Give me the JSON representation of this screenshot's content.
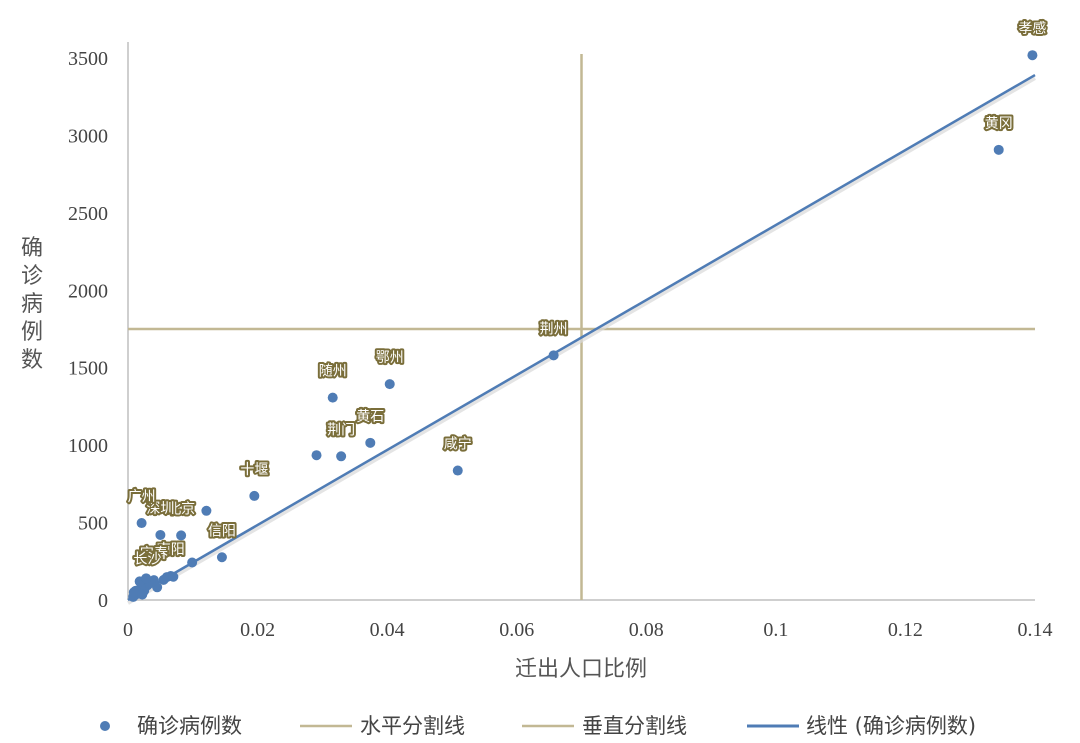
{
  "chart_data": {
    "type": "scatter",
    "title": "",
    "xlabel": "迁出人口比例",
    "ylabel": "确诊病例数",
    "xlim": [
      0,
      0.14
    ],
    "ylim": [
      0,
      3500
    ],
    "x_ticks": [
      "0",
      "0.02",
      "0.04",
      "0.06",
      "0.08",
      "0.1",
      "0.12",
      "0.14"
    ],
    "y_ticks": [
      "0",
      "500",
      "1000",
      "1500",
      "2000",
      "2500",
      "3000",
      "3500"
    ],
    "grid": false,
    "legend_position": "bottom",
    "colors": {
      "points": "#4f7cb5",
      "split_lines": "#c2b894",
      "trend": "#4f7cb5",
      "label_bg": "#7a6e3a"
    },
    "series": [
      {
        "name": "确诊病例数",
        "points": [
          {
            "x": 0.1396,
            "y": 3518,
            "label": "孝感"
          },
          {
            "x": 0.1344,
            "y": 2907,
            "label": "黄冈"
          },
          {
            "x": 0.0657,
            "y": 1580,
            "label": "荆州"
          },
          {
            "x": 0.0404,
            "y": 1394,
            "label": "鄂州"
          },
          {
            "x": 0.0316,
            "y": 1307,
            "label": "随州"
          },
          {
            "x": 0.0374,
            "y": 1015,
            "label": "黄石"
          },
          {
            "x": 0.0329,
            "y": 928,
            "label": "荆门"
          },
          {
            "x": 0.0291,
            "y": 935,
            "label": ""
          },
          {
            "x": 0.0509,
            "y": 836,
            "label": "咸宁"
          },
          {
            "x": 0.0195,
            "y": 672,
            "label": "十堰"
          },
          {
            "x": 0.0121,
            "y": 576,
            "label": ""
          },
          {
            "x": 0.0145,
            "y": 276,
            "label": "信阳"
          },
          {
            "x": 0.0099,
            "y": 242,
            "label": ""
          },
          {
            "x": 0.0082,
            "y": 417,
            "label": "北京"
          },
          {
            "x": 0.005,
            "y": 420,
            "label": "深圳"
          },
          {
            "x": 0.0021,
            "y": 497,
            "label": "广州"
          },
          {
            "x": 0.0066,
            "y": 155,
            "label": "南阳"
          },
          {
            "x": 0.006,
            "y": 148,
            "label": ""
          },
          {
            "x": 0.0045,
            "y": 82,
            "label": ""
          },
          {
            "x": 0.004,
            "y": 128,
            "label": "宜春"
          },
          {
            "x": 0.0035,
            "y": 110,
            "label": ""
          },
          {
            "x": 0.003,
            "y": 95,
            "label": "长沙"
          },
          {
            "x": 0.0025,
            "y": 60,
            "label": ""
          },
          {
            "x": 0.002,
            "y": 80,
            "label": ""
          },
          {
            "x": 0.0015,
            "y": 40,
            "label": ""
          },
          {
            "x": 0.001,
            "y": 30,
            "label": ""
          },
          {
            "x": 0.0012,
            "y": 60,
            "label": ""
          },
          {
            "x": 0.0008,
            "y": 20,
            "label": ""
          },
          {
            "x": 0.0018,
            "y": 120,
            "label": ""
          },
          {
            "x": 0.0028,
            "y": 140,
            "label": ""
          },
          {
            "x": 0.0055,
            "y": 130,
            "label": ""
          },
          {
            "x": 0.007,
            "y": 150,
            "label": ""
          },
          {
            "x": 0.0009,
            "y": 50,
            "label": ""
          },
          {
            "x": 0.0022,
            "y": 35,
            "label": ""
          }
        ]
      },
      {
        "name": "水平分割线",
        "kind": "hline",
        "y": 1750
      },
      {
        "name": "垂直分割线",
        "kind": "vline",
        "x": 0.07
      },
      {
        "name": "线性 (确诊病例数)",
        "kind": "trend",
        "x": [
          0,
          0.14
        ],
        "y": [
          0,
          3390
        ]
      }
    ]
  }
}
